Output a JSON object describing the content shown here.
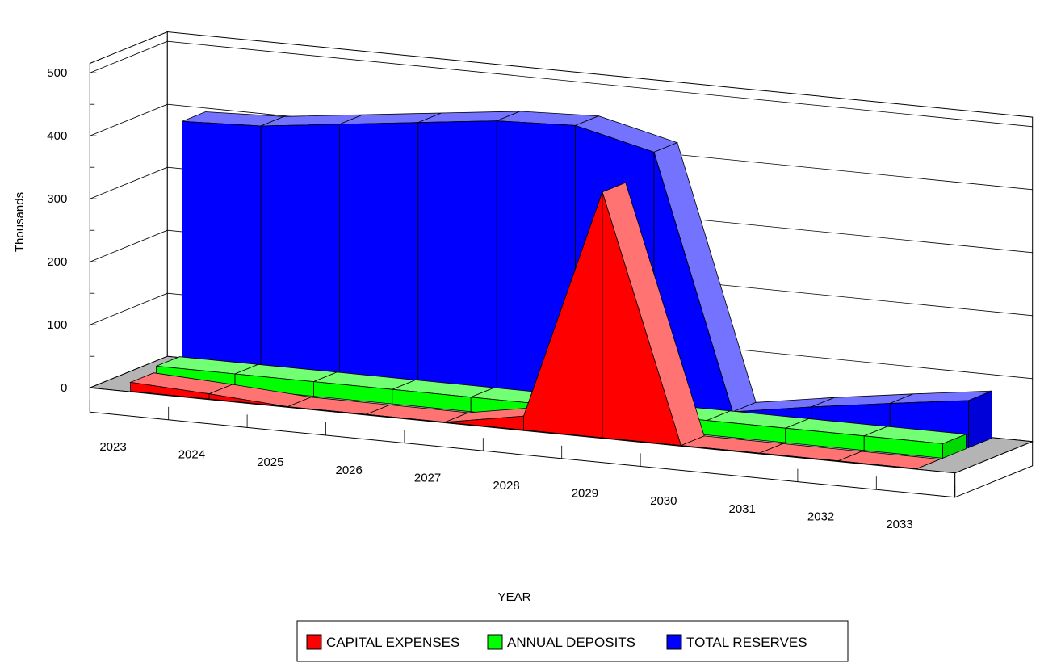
{
  "chart_data": {
    "type": "area",
    "style": "3d-ribbon",
    "categories": [
      "2023",
      "2024",
      "2025",
      "2026",
      "2027",
      "2028",
      "2029",
      "2030",
      "2031",
      "2032",
      "2033"
    ],
    "series": [
      {
        "name": "CAPITAL EXPENSES",
        "color": "#ff0000",
        "values": [
          14,
          8,
          0,
          0,
          0,
          22,
          390,
          0,
          0,
          0,
          0
        ]
      },
      {
        "name": "ANNUAL DEPOSITS",
        "color": "#00ff00",
        "values": [
          23,
          23,
          23,
          23,
          23,
          23,
          23,
          23,
          23,
          23,
          23
        ]
      },
      {
        "name": "TOTAL RESERVES",
        "color": "#0000ff",
        "values": [
          395,
          400,
          415,
          430,
          445,
          450,
          420,
          20,
          40,
          58,
          75
        ]
      }
    ],
    "xlabel": "YEAR",
    "ylabel": "Thousands",
    "yticks": [
      0,
      100,
      200,
      300,
      400,
      500
    ],
    "ylim": [
      0,
      500
    ],
    "grid": true,
    "legend_position": "bottom"
  }
}
